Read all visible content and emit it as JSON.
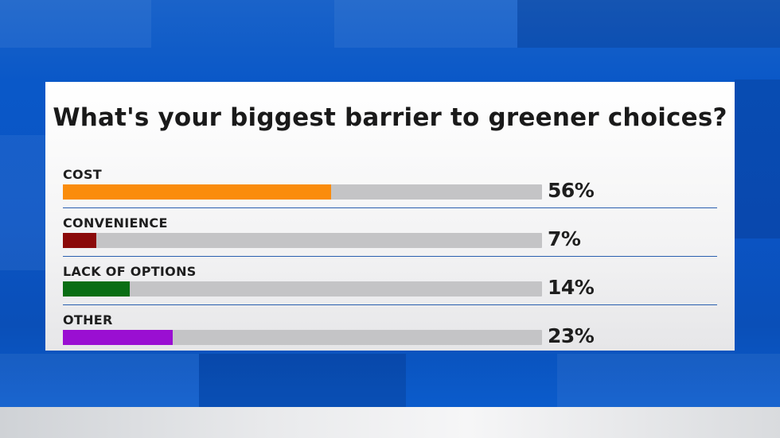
{
  "chart_data": {
    "type": "bar",
    "title": "What's your biggest barrier to greener choices?",
    "categories": [
      "COST",
      "CONVENIENCE",
      "LACK OF OPTIONS",
      "OTHER"
    ],
    "values": [
      56,
      7,
      14,
      23
    ],
    "value_labels": [
      "56%",
      "7%",
      "14%",
      "23%"
    ],
    "colors": [
      "#fa8c0c",
      "#8b0a0a",
      "#0a6e14",
      "#9a0fd2"
    ],
    "track_color": "#c4c4c6",
    "xlim": [
      0,
      100
    ],
    "orientation": "horizontal",
    "grid": false,
    "legend": "none"
  }
}
